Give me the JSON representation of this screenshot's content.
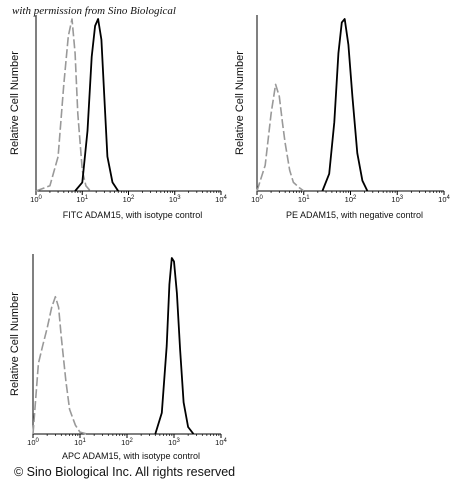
{
  "watermark": "with permission from Sino Biological",
  "copyright": "© Sino Biological Inc. All rights reserved",
  "colors": {
    "sample": "#000000",
    "control": "#999999",
    "axis": "#000000"
  },
  "chart_data": [
    {
      "type": "line",
      "xlabel": "FITC ADAM15, with isotype control",
      "ylabel": "Relative Cell Number",
      "x_scale": "log",
      "xlim": [
        1,
        10000
      ],
      "ylim": [
        0,
        100
      ],
      "x_ticks": [
        {
          "base": "10",
          "exp": "0"
        },
        {
          "base": "10",
          "exp": "1"
        },
        {
          "base": "10",
          "exp": "2"
        },
        {
          "base": "10",
          "exp": "3"
        },
        {
          "base": "10",
          "exp": "4"
        }
      ],
      "series": [
        {
          "role": "control",
          "style": "dashed",
          "color": "#999999",
          "x": [
            1,
            2,
            3,
            4,
            5,
            6,
            7,
            8,
            10,
            12,
            15
          ],
          "y": [
            0,
            3,
            20,
            62,
            90,
            100,
            80,
            45,
            12,
            3,
            0
          ]
        },
        {
          "role": "sample",
          "style": "solid",
          "color": "#000000",
          "x": [
            7,
            10,
            13,
            16,
            19,
            22,
            26,
            30,
            35,
            45,
            60
          ],
          "y": [
            0,
            5,
            35,
            78,
            96,
            100,
            88,
            55,
            20,
            5,
            0
          ]
        }
      ]
    },
    {
      "type": "line",
      "xlabel": "PE  ADAM15,  with negative control",
      "ylabel": "Relative Cell Number",
      "x_scale": "log",
      "xlim": [
        1,
        10000
      ],
      "ylim": [
        0,
        100
      ],
      "x_ticks": [
        {
          "base": "10",
          "exp": "0"
        },
        {
          "base": "10",
          "exp": "1"
        },
        {
          "base": "10",
          "exp": "2"
        },
        {
          "base": "10",
          "exp": "3"
        },
        {
          "base": "10",
          "exp": "4"
        }
      ],
      "series": [
        {
          "role": "control",
          "style": "dashed",
          "color": "#999999",
          "x": [
            1,
            1.5,
            2,
            2.5,
            3,
            3.5,
            4,
            5,
            6,
            8,
            10
          ],
          "y": [
            0,
            15,
            45,
            62,
            55,
            40,
            28,
            12,
            5,
            2,
            0
          ]
        },
        {
          "role": "sample",
          "style": "solid",
          "color": "#000000",
          "x": [
            25,
            35,
            45,
            55,
            65,
            75,
            90,
            110,
            140,
            180,
            230
          ],
          "y": [
            0,
            10,
            40,
            80,
            98,
            100,
            85,
            55,
            22,
            6,
            0
          ]
        }
      ]
    },
    {
      "type": "line",
      "xlabel": "APC ADAM15, with isotype control",
      "ylabel": "Relative Cell Number",
      "x_scale": "log",
      "xlim": [
        1,
        10000
      ],
      "ylim": [
        0,
        100
      ],
      "x_ticks": [
        {
          "base": "10",
          "exp": "0"
        },
        {
          "base": "10",
          "exp": "1"
        },
        {
          "base": "10",
          "exp": "2"
        },
        {
          "base": "10",
          "exp": "3"
        },
        {
          "base": "10",
          "exp": "4"
        }
      ],
      "series": [
        {
          "role": "control",
          "style": "dashed",
          "color": "#999999",
          "x": [
            1,
            1.3,
            1.6,
            2,
            2.5,
            3,
            3.5,
            4,
            5,
            6,
            8,
            10,
            14
          ],
          "y": [
            0,
            40,
            50,
            60,
            72,
            78,
            72,
            55,
            30,
            14,
            5,
            1,
            0
          ]
        },
        {
          "role": "sample",
          "style": "solid",
          "color": "#000000",
          "x": [
            400,
            550,
            700,
            800,
            900,
            1000,
            1150,
            1350,
            1600,
            2000,
            2600
          ],
          "y": [
            0,
            12,
            50,
            85,
            100,
            98,
            80,
            48,
            18,
            4,
            0
          ]
        }
      ]
    }
  ]
}
